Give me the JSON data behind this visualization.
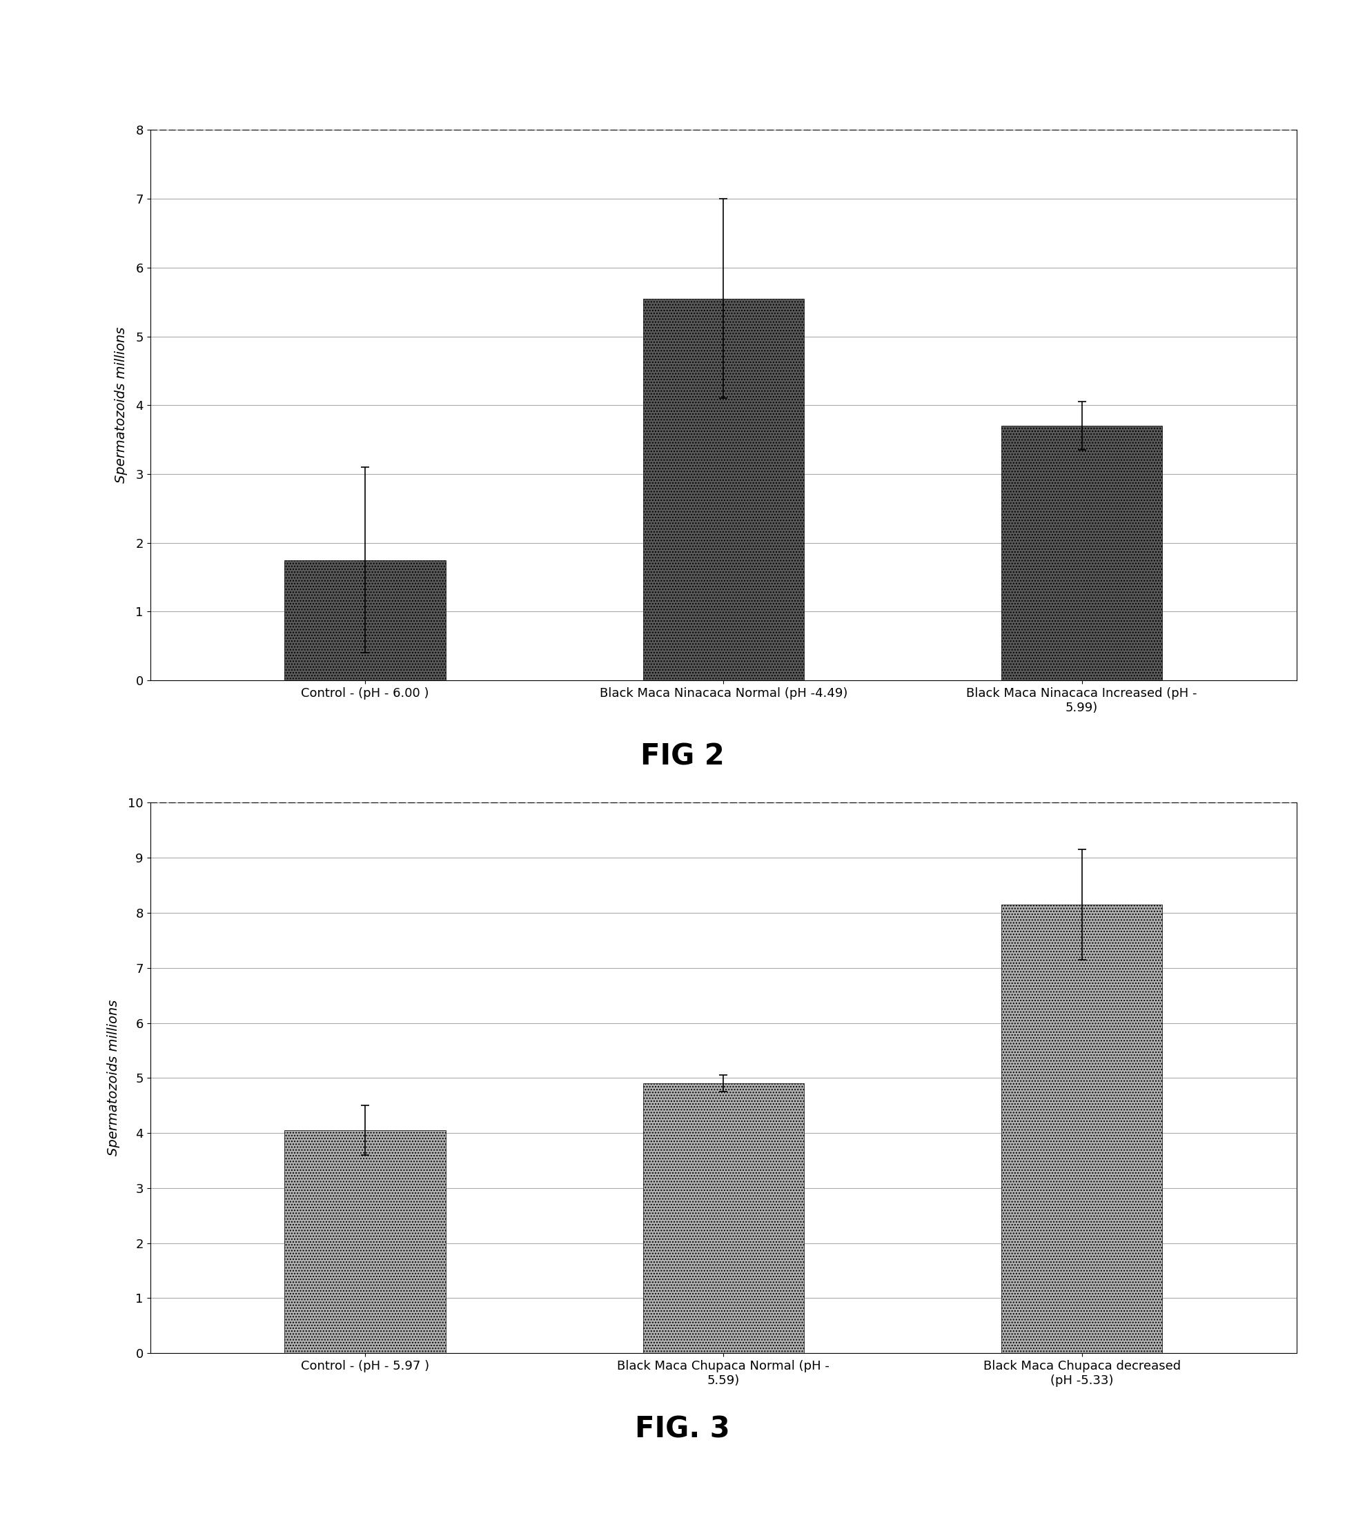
{
  "fig2": {
    "categories": [
      "Control - (pH - 6.00 )",
      "Black Maca Ninacaca Normal (pH -4.49)",
      "Black Maca Ninacaca Increased (pH -\n5.99)"
    ],
    "values": [
      1.75,
      5.55,
      3.7
    ],
    "errors": [
      1.35,
      1.45,
      0.35
    ],
    "bar_color": "#595959",
    "ylabel": "Spermatozoids millions",
    "ylim": [
      0,
      8
    ],
    "yticks": [
      0,
      1,
      2,
      3,
      4,
      5,
      6,
      7,
      8
    ],
    "caption": "FIG 2"
  },
  "fig3": {
    "categories": [
      "Control - (pH - 5.97 )",
      "Black Maca Chupaca Normal (pH -\n5.59)",
      "Black Maca Chupaca decreased\n(pH -5.33)"
    ],
    "values": [
      4.05,
      4.9,
      8.15
    ],
    "errors": [
      0.45,
      0.15,
      1.0
    ],
    "bar_color": "#b0b0b0",
    "ylabel": "Spermatozoids millions",
    "ylim": [
      0,
      10
    ],
    "yticks": [
      0,
      1,
      2,
      3,
      4,
      5,
      6,
      7,
      8,
      9,
      10
    ],
    "caption": "FIG. 3"
  },
  "background_color": "#ffffff",
  "grid_color": "#aaaaaa",
  "bar_width": 0.45,
  "tick_fontsize": 13,
  "label_fontsize": 14,
  "caption_fontsize": 30
}
